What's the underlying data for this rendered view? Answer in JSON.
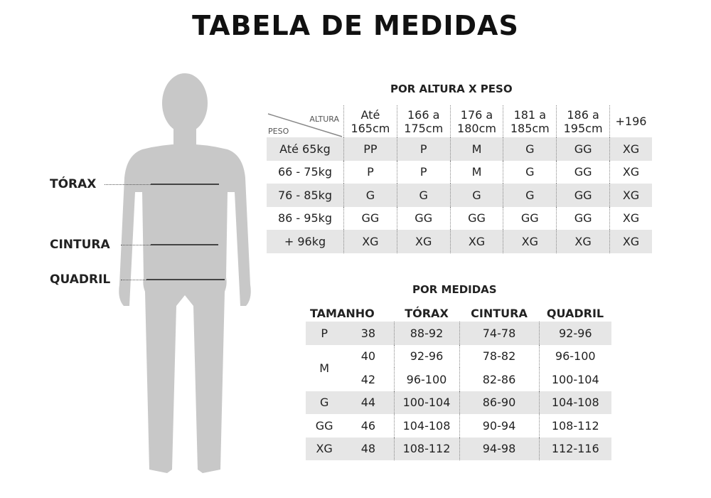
{
  "title": "TABELA DE MEDIDAS",
  "body_labels": {
    "torax": "TÓRAX",
    "cintura": "CINTURA",
    "quadril": "QUADRIL"
  },
  "colors": {
    "silhouette": "#c8c8c8",
    "row_shade": "#e6e6e6"
  },
  "altura_peso": {
    "title": "POR ALTURA X PESO",
    "corner_top": "ALTURA",
    "corner_bottom": "PESO",
    "columns": [
      [
        "Até",
        "165cm"
      ],
      [
        "166 a",
        "175cm"
      ],
      [
        "176 a",
        "180cm"
      ],
      [
        "181 a",
        "185cm"
      ],
      [
        "186 a",
        "195cm"
      ],
      [
        "+196",
        ""
      ]
    ],
    "rows": [
      {
        "peso": "Até 65kg",
        "sizes": [
          "PP",
          "P",
          "M",
          "G",
          "GG",
          "XG"
        ]
      },
      {
        "peso": "66 - 75kg",
        "sizes": [
          "P",
          "P",
          "M",
          "G",
          "GG",
          "XG"
        ]
      },
      {
        "peso": "76 - 85kg",
        "sizes": [
          "G",
          "G",
          "G",
          "G",
          "GG",
          "XG"
        ]
      },
      {
        "peso": "86 - 95kg",
        "sizes": [
          "GG",
          "GG",
          "GG",
          "GG",
          "GG",
          "XG"
        ]
      },
      {
        "peso": "+ 96kg",
        "sizes": [
          "XG",
          "XG",
          "XG",
          "XG",
          "XG",
          "XG"
        ]
      }
    ]
  },
  "medidas": {
    "title": "POR MEDIDAS",
    "headers": [
      "TAMANHO",
      "TÓRAX",
      "CINTURA",
      "QUADRIL"
    ],
    "rows": [
      {
        "size": "P",
        "num": "38",
        "torax": "88-92",
        "cintura": "74-78",
        "quadril": "92-96"
      },
      {
        "size": "M",
        "num": "40",
        "torax": "92-96",
        "cintura": "78-82",
        "quadril": "96-100"
      },
      {
        "size": "",
        "num": "42",
        "torax": "96-100",
        "cintura": "82-86",
        "quadril": "100-104"
      },
      {
        "size": "G",
        "num": "44",
        "torax": "100-104",
        "cintura": "86-90",
        "quadril": "104-108"
      },
      {
        "size": "GG",
        "num": "46",
        "torax": "104-108",
        "cintura": "90-94",
        "quadril": "108-112"
      },
      {
        "size": "XG",
        "num": "48",
        "torax": "108-112",
        "cintura": "94-98",
        "quadril": "112-116"
      }
    ]
  }
}
